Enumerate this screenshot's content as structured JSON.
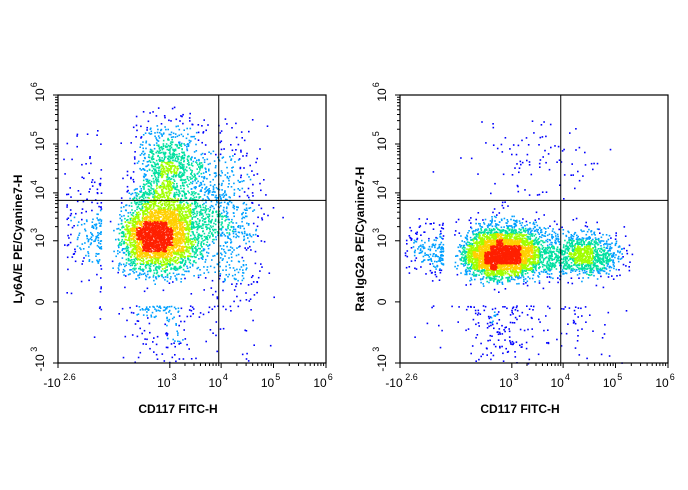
{
  "chart_data": [
    {
      "type": "scatter",
      "subtype": "flow-cytometry-density-dot-plot",
      "xlabel": "CD117 FITC-H",
      "ylabel": "Ly6A/E PE/Cyanine7-H",
      "x_scale": "biexponential",
      "y_scale": "biexponential",
      "xlim": [
        -398,
        1000000
      ],
      "ylim": [
        -1000,
        1000000
      ],
      "x_ticks": [
        {
          "base": "-10",
          "exp": "2.6"
        },
        {
          "base": "10",
          "exp": "3"
        },
        {
          "base": "10",
          "exp": "4"
        },
        {
          "base": "10",
          "exp": "5"
        },
        {
          "base": "10",
          "exp": "6"
        }
      ],
      "y_ticks": [
        {
          "base": "10",
          "exp": "6"
        },
        {
          "base": "10",
          "exp": "5"
        },
        {
          "base": "10",
          "exp": "4"
        },
        {
          "base": "10",
          "exp": "3"
        },
        {
          "base": "0",
          "exp": ""
        },
        {
          "base": "-10",
          "exp": "3"
        }
      ],
      "quadrant_gate": {
        "x": 9000,
        "y": 7000
      },
      "populations": [
        {
          "x": 550,
          "y": 1300,
          "sx": 0.42,
          "sy": 0.42,
          "weight": 0.62
        },
        {
          "x": 900,
          "y": 35000,
          "sx": 0.35,
          "sy": 0.45,
          "weight": 0.15
        },
        {
          "x": 2500,
          "y": 4000,
          "sx": 0.45,
          "sy": 0.65,
          "weight": 0.15
        },
        {
          "x": 18000,
          "y": 2000,
          "sx": 0.3,
          "sy": 0.9,
          "weight": 0.08
        }
      ],
      "colors": [
        "#0000ff",
        "#00a0ff",
        "#00e0a0",
        "#a0ff00",
        "#ffd000",
        "#ff2000"
      ],
      "grid": false
    },
    {
      "type": "scatter",
      "subtype": "flow-cytometry-density-dot-plot",
      "xlabel": "CD117 FITC-H",
      "ylabel": "Rat IgG2a PE/Cyanine7-H",
      "x_scale": "biexponential",
      "y_scale": "biexponential",
      "xlim": [
        -398,
        1000000
      ],
      "ylim": [
        -1000,
        1000000
      ],
      "x_ticks": [
        {
          "base": "-10",
          "exp": "2.6"
        },
        {
          "base": "10",
          "exp": "3"
        },
        {
          "base": "10",
          "exp": "4"
        },
        {
          "base": "10",
          "exp": "5"
        },
        {
          "base": "10",
          "exp": "6"
        }
      ],
      "y_ticks": [
        {
          "base": "10",
          "exp": "6"
        },
        {
          "base": "10",
          "exp": "5"
        },
        {
          "base": "10",
          "exp": "4"
        },
        {
          "base": "10",
          "exp": "3"
        },
        {
          "base": "0",
          "exp": ""
        },
        {
          "base": "-10",
          "exp": "3"
        }
      ],
      "quadrant_gate": {
        "x": 9000,
        "y": 7000
      },
      "populations": [
        {
          "x": 650,
          "y": 550,
          "sx": 0.45,
          "sy": 0.3,
          "weight": 0.78
        },
        {
          "x": 25000,
          "y": 500,
          "sx": 0.35,
          "sy": 0.25,
          "weight": 0.2
        },
        {
          "x": 3000,
          "y": 40000,
          "sx": 0.6,
          "sy": 0.5,
          "weight": 0.02
        }
      ],
      "colors": [
        "#0000ff",
        "#00a0ff",
        "#00e0a0",
        "#a0ff00",
        "#ffd000",
        "#ff2000"
      ],
      "grid": false
    }
  ]
}
